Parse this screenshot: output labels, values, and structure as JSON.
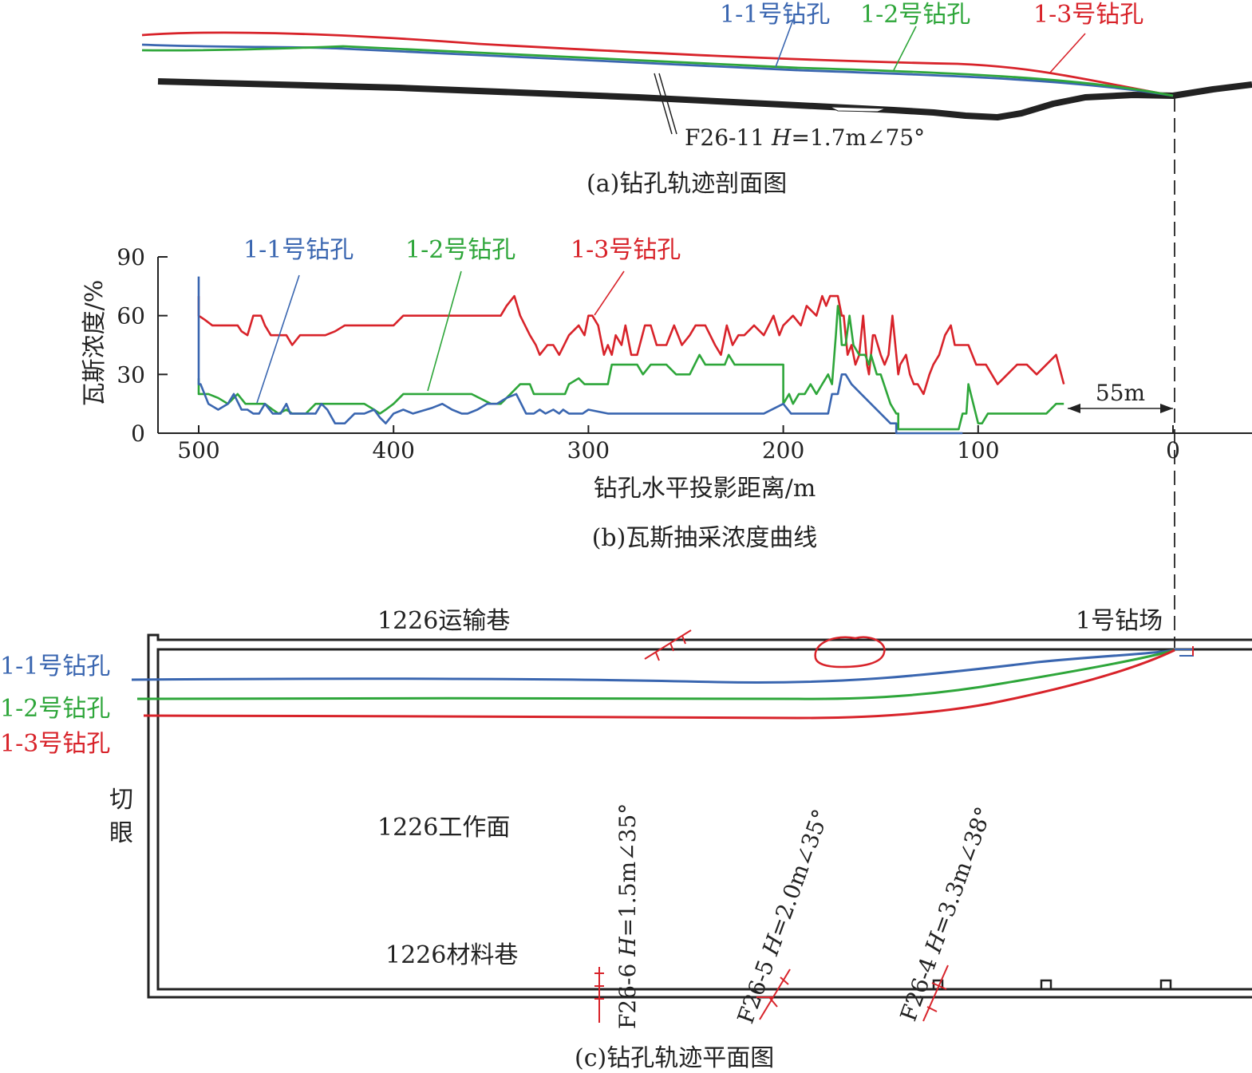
{
  "colors": {
    "blue": "#3a66b0",
    "green": "#2ea63a",
    "red": "#d8232a",
    "black": "#222222"
  },
  "borehole_labels": {
    "b11": "1-1号钻孔",
    "b12": "1-2号钻孔",
    "b13": "1-3号钻孔"
  },
  "profile": {
    "fault_label_prefix": "F26-11 ",
    "fault_label_h": "H",
    "fault_label_suffix": "=1.7m∠75°",
    "caption": "(a)钻孔轨迹剖面图"
  },
  "chart": {
    "caption": "(b)瓦斯抽采浓度曲线",
    "ylabel": "瓦斯浓度/%",
    "xlabel": "钻孔水平投影距离/m",
    "yticks": [
      "0",
      "30",
      "60",
      "90"
    ],
    "xticks": [
      "500",
      "400",
      "300",
      "200",
      "100",
      "0"
    ],
    "dist_annotation": "55m"
  },
  "chart_data": {
    "type": "line",
    "xlabel": "钻孔水平投影距离/m",
    "ylabel": "瓦斯浓度/%",
    "xlim": [
      520,
      -40
    ],
    "ylim": [
      0,
      90
    ],
    "series": [
      {
        "name": "1-1号钻孔",
        "color": "#3a66b0",
        "x": [
          500,
          500,
          499,
          495,
          490,
          485,
          482,
          478,
          475,
          472,
          469,
          466,
          462,
          458,
          455,
          453,
          450,
          447,
          445,
          440,
          437,
          434,
          430,
          425,
          420,
          415,
          410,
          407,
          404,
          400,
          395,
          390,
          380,
          375,
          370,
          365,
          362,
          357,
          352,
          347,
          342,
          337,
          332,
          328,
          325,
          322,
          318,
          315,
          313,
          310,
          307,
          303,
          300,
          290,
          280,
          270,
          260,
          250,
          240,
          230,
          220,
          210,
          200,
          196,
          190,
          185,
          180,
          177,
          175,
          172,
          170,
          168,
          165,
          160,
          155,
          150,
          145,
          142,
          142,
          135,
          120,
          108
        ],
        "y": [
          80,
          25,
          25,
          15,
          12,
          15,
          20,
          12,
          12,
          10,
          10,
          15,
          10,
          10,
          15,
          10,
          10,
          10,
          10,
          10,
          15,
          12,
          5,
          5,
          10,
          10,
          12,
          8,
          5,
          10,
          12,
          10,
          13,
          15,
          12,
          10,
          10,
          12,
          15,
          15,
          18,
          20,
          10,
          10,
          12,
          10,
          12,
          10,
          12,
          10,
          10,
          10,
          12,
          10,
          10,
          10,
          10,
          10,
          10,
          10,
          10,
          10,
          15,
          10,
          10,
          10,
          10,
          10,
          20,
          20,
          30,
          30,
          25,
          20,
          15,
          10,
          5,
          5,
          0,
          0,
          0,
          0
        ]
      },
      {
        "name": "1-2号钻孔",
        "color": "#2ea63a",
        "x": [
          500,
          500,
          495,
          490,
          485,
          480,
          476,
          472,
          469,
          466,
          462,
          459,
          455,
          452,
          450,
          445,
          440,
          435,
          430,
          425,
          420,
          415,
          410,
          407,
          404,
          400,
          395,
          390,
          380,
          370,
          360,
          350,
          345,
          340,
          335,
          330,
          328,
          325,
          320,
          315,
          312,
          310,
          305,
          302,
          300,
          295,
          290,
          288,
          285,
          280,
          275,
          272,
          268,
          263,
          260,
          255,
          248,
          243,
          240,
          235,
          230,
          228,
          225,
          220,
          215,
          210,
          205,
          200,
          200,
          197,
          195,
          192,
          189,
          186,
          183,
          180,
          177,
          175,
          173,
          172,
          171,
          170,
          168,
          166,
          164,
          161,
          158,
          156,
          155,
          152,
          150,
          145,
          142,
          141,
          141,
          135,
          125,
          115,
          110,
          108,
          106,
          105,
          100,
          98,
          95,
          90,
          85,
          75,
          65,
          60,
          56
        ],
        "y": [
          28,
          20,
          20,
          18,
          15,
          20,
          15,
          15,
          15,
          15,
          12,
          10,
          12,
          10,
          10,
          10,
          15,
          15,
          15,
          15,
          15,
          15,
          12,
          10,
          12,
          15,
          20,
          20,
          20,
          20,
          20,
          15,
          15,
          20,
          25,
          25,
          20,
          20,
          20,
          20,
          20,
          25,
          28,
          25,
          25,
          25,
          25,
          35,
          35,
          35,
          35,
          30,
          35,
          35,
          35,
          30,
          30,
          40,
          35,
          35,
          35,
          40,
          35,
          35,
          35,
          35,
          35,
          35,
          15,
          20,
          15,
          20,
          20,
          25,
          20,
          25,
          30,
          25,
          50,
          65,
          60,
          45,
          45,
          60,
          45,
          40,
          40,
          35,
          40,
          30,
          30,
          15,
          10,
          10,
          2,
          2,
          2,
          2,
          2,
          10,
          10,
          25,
          5,
          5,
          10,
          10,
          10,
          10,
          10,
          15,
          15
        ]
      },
      {
        "name": "1-3号钻孔",
        "color": "#d8232a",
        "x": [
          500,
          500,
          497,
          493,
          490,
          486,
          480,
          478,
          475,
          472,
          468,
          466,
          463,
          458,
          455,
          452,
          448,
          445,
          440,
          435,
          430,
          425,
          420,
          410,
          400,
          395,
          390,
          380,
          370,
          360,
          350,
          345,
          342,
          338,
          335,
          330,
          327,
          325,
          321,
          318,
          315,
          310,
          305,
          302,
          300,
          298,
          295,
          292,
          290,
          288,
          286,
          283,
          281,
          278,
          275,
          271,
          268,
          265,
          260,
          256,
          252,
          248,
          245,
          240,
          235,
          232,
          229,
          226,
          223,
          220,
          215,
          210,
          205,
          202,
          200,
          195,
          191,
          188,
          183,
          180,
          178,
          176,
          174,
          172,
          171,
          170,
          169,
          167,
          165,
          163,
          161,
          159,
          157,
          156,
          155,
          154,
          153,
          150,
          148,
          146,
          144,
          141,
          140,
          137,
          135,
          133,
          131,
          128,
          125,
          123,
          120,
          117,
          114,
          112,
          108,
          105,
          101,
          96,
          93,
          90,
          85,
          80,
          75,
          70,
          65,
          60,
          56
        ],
        "y": [
          70,
          60,
          58,
          55,
          55,
          55,
          55,
          52,
          50,
          60,
          60,
          55,
          50,
          50,
          50,
          45,
          50,
          50,
          50,
          50,
          52,
          55,
          55,
          55,
          55,
          60,
          60,
          60,
          60,
          60,
          60,
          60,
          65,
          70,
          60,
          50,
          45,
          40,
          45,
          45,
          40,
          50,
          55,
          50,
          60,
          60,
          55,
          40,
          45,
          40,
          50,
          45,
          55,
          40,
          40,
          55,
          55,
          45,
          45,
          55,
          45,
          50,
          55,
          55,
          45,
          40,
          55,
          45,
          50,
          50,
          55,
          50,
          60,
          50,
          55,
          60,
          55,
          65,
          60,
          70,
          65,
          70,
          70,
          70,
          65,
          60,
          60,
          40,
          45,
          35,
          40,
          60,
          35,
          30,
          40,
          50,
          50,
          40,
          35,
          40,
          60,
          30,
          35,
          40,
          30,
          25,
          25,
          20,
          30,
          35,
          40,
          50,
          55,
          45,
          45,
          45,
          35,
          35,
          30,
          25,
          30,
          35,
          35,
          30,
          35,
          40,
          25
        ]
      }
    ]
  },
  "plan": {
    "roadway_top": "1226运输巷",
    "drill_site": "1号钻场",
    "face": "1226工作面",
    "roadway_bottom": "1226材料巷",
    "cut_char1": "切",
    "cut_char2": "眼",
    "caption": "(c)钻孔轨迹平面图",
    "faults": [
      {
        "prefix": "F26-6 ",
        "h": "H",
        "suffix": "=1.5m∠35°"
      },
      {
        "prefix": "F26-5 ",
        "h": "H",
        "suffix": "=2.0m∠35°"
      },
      {
        "prefix": "F26-4 ",
        "h": "H",
        "suffix": "=3.3m∠38°"
      }
    ]
  }
}
